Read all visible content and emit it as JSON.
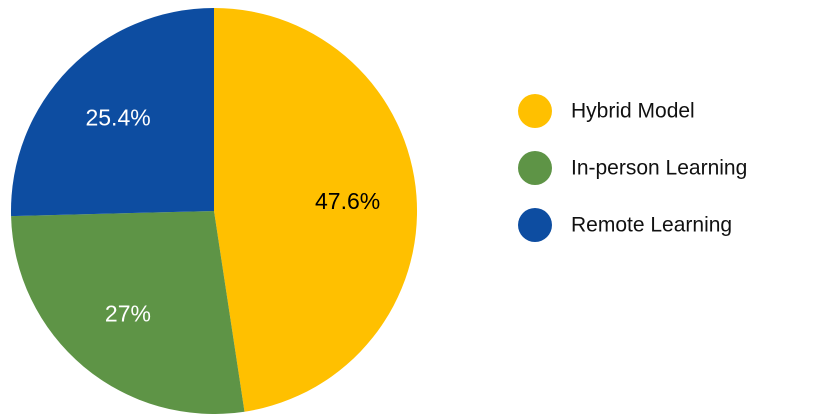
{
  "chart_data": {
    "type": "pie",
    "start_angle": "12 o'clock",
    "direction": "clockwise",
    "slices": [
      {
        "name": "Hybrid Model",
        "value": 47.6,
        "label": "47.6%",
        "color": "#FFC000",
        "label_color": "#000000"
      },
      {
        "name": "In-person Learning",
        "value": 27,
        "label": "27%",
        "color": "#5E9446",
        "label_color": "#ffffff"
      },
      {
        "name": "Remote Learning",
        "value": 25.4,
        "label": "25.4%",
        "color": "#0D4DA1",
        "label_color": "#ffffff"
      }
    ],
    "legend": {
      "placement": "right",
      "items": [
        "Hybrid Model",
        "In-person Learning",
        "Remote Learning"
      ]
    }
  }
}
